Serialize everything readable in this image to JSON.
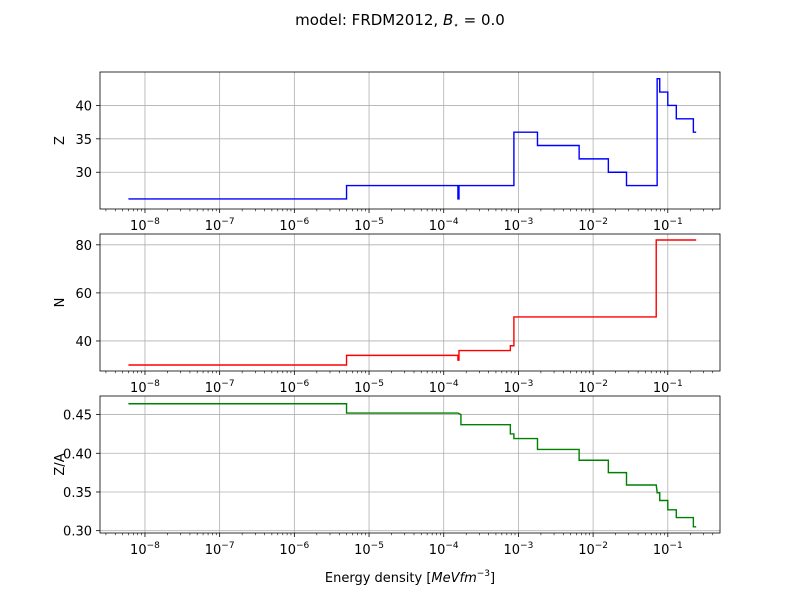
{
  "figure": {
    "title": "model: FRDM2012, B☆ = 0.0",
    "title_parts": {
      "prefix": "model: FRDM2012, ",
      "symbol": "B",
      "star": "⋆",
      "suffix": " = 0.0"
    },
    "xlabel": "Energy density [MeVfm⁻³]",
    "xlabel_parts": {
      "prefix": "Energy density [",
      "unit": "MeVfm",
      "exp": "−3",
      "suffix": "]"
    }
  },
  "chart_data": [
    {
      "type": "line",
      "xscale": "log",
      "xlim": [
        2.5e-09,
        0.5
      ],
      "ylim": [
        24.5,
        45
      ],
      "xticks": [
        -8,
        -7,
        -6,
        -5,
        -4,
        -3,
        -2,
        -1
      ],
      "yticks": [
        30,
        35,
        40
      ],
      "ylabel": "Z",
      "grid": true,
      "color": "#0000ff",
      "x": [
        6e-09,
        5e-06,
        5e-06,
        0.000155,
        0.000155,
        0.00016,
        0.00016,
        0.00087,
        0.00087,
        0.0018,
        0.0018,
        0.0065,
        0.0065,
        0.016,
        0.016,
        0.028,
        0.028,
        0.072,
        0.072,
        0.078,
        0.078,
        0.1,
        0.1,
        0.13,
        0.13,
        0.17,
        0.17,
        0.22,
        0.22,
        0.24
      ],
      "y": [
        26,
        26,
        28,
        28,
        26,
        26,
        28,
        28,
        36,
        36,
        34,
        34,
        32,
        32,
        30,
        30,
        28,
        28,
        44,
        44,
        42,
        42,
        40,
        40,
        38,
        38,
        38,
        38,
        36,
        36
      ]
    },
    {
      "type": "line",
      "xscale": "log",
      "xlim": [
        2.5e-09,
        0.5
      ],
      "ylim": [
        27.5,
        84.5
      ],
      "xticks": [
        -8,
        -7,
        -6,
        -5,
        -4,
        -3,
        -2,
        -1
      ],
      "yticks": [
        40,
        60,
        80
      ],
      "ylabel": "N",
      "grid": true,
      "color": "#ff0000",
      "x": [
        6e-09,
        5e-06,
        5e-06,
        0.000155,
        0.000155,
        0.00016,
        0.00016,
        0.00078,
        0.00078,
        0.00087,
        0.00087,
        0.07,
        0.07,
        0.24
      ],
      "y": [
        30,
        30,
        34,
        34,
        32,
        32,
        36,
        36,
        38,
        38,
        50,
        50,
        82,
        82
      ]
    },
    {
      "type": "line",
      "xscale": "log",
      "xlim": [
        2.5e-09,
        0.5
      ],
      "ylim": [
        0.297,
        0.474
      ],
      "xticks": [
        -8,
        -7,
        -6,
        -5,
        -4,
        -3,
        -2,
        -1
      ],
      "yticks": [
        0.3,
        0.35,
        0.4,
        0.45
      ],
      "ytick_labels": [
        "0.30",
        "0.35",
        "0.40",
        "0.45"
      ],
      "ylabel": "Z/A",
      "grid": true,
      "color": "#008000",
      "x": [
        6e-09,
        5e-06,
        5e-06,
        0.000155,
        0.00017,
        0.00017,
        0.00078,
        0.00078,
        0.00087,
        0.00087,
        0.0018,
        0.0018,
        0.0065,
        0.0065,
        0.016,
        0.016,
        0.028,
        0.028,
        0.07,
        0.072,
        0.072,
        0.078,
        0.078,
        0.1,
        0.1,
        0.13,
        0.13,
        0.17,
        0.17,
        0.22,
        0.22,
        0.24
      ],
      "y": [
        0.464,
        0.464,
        0.452,
        0.452,
        0.45,
        0.437,
        0.437,
        0.425,
        0.425,
        0.419,
        0.419,
        0.405,
        0.405,
        0.391,
        0.391,
        0.375,
        0.375,
        0.359,
        0.359,
        0.35,
        0.349,
        0.349,
        0.339,
        0.339,
        0.327,
        0.327,
        0.317,
        0.317,
        0.317,
        0.317,
        0.305,
        0.305
      ]
    }
  ]
}
